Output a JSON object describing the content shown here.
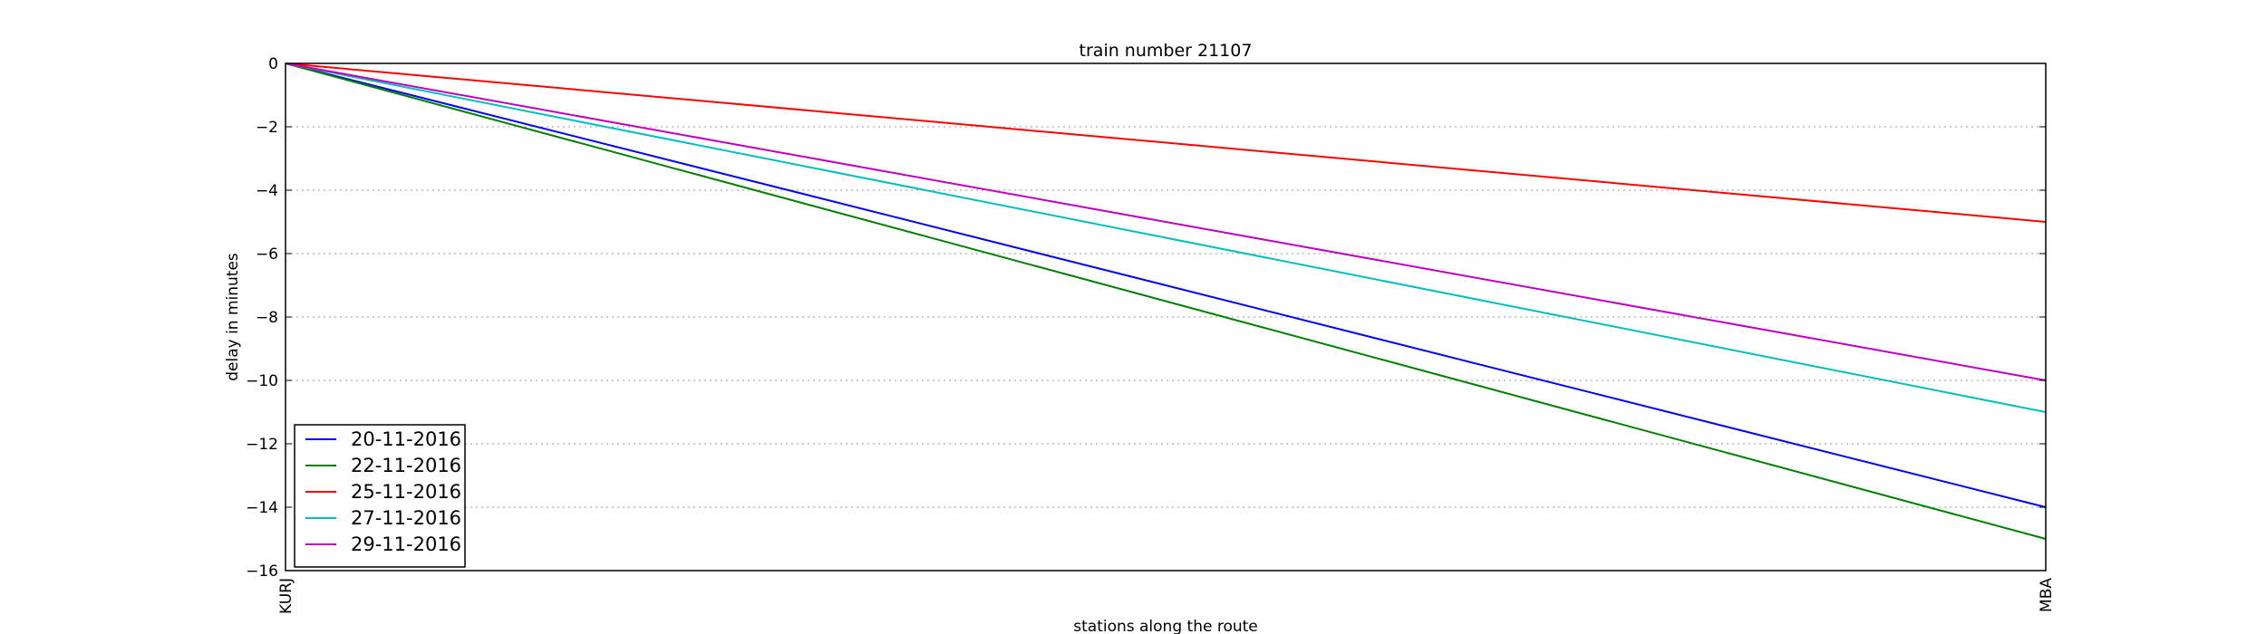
{
  "chart_data": {
    "type": "line",
    "title": "train number 21107",
    "xlabel": "stations along the route",
    "ylabel": "delay in minutes",
    "categories": [
      "KURJ",
      "MBA"
    ],
    "ylim": [
      -16,
      0
    ],
    "yticks": [
      0,
      -2,
      -4,
      -6,
      -8,
      -10,
      -12,
      -14,
      -16
    ],
    "grid": "horizontal dotted",
    "legend_position": "lower-left",
    "series": [
      {
        "name": "20-11-2016",
        "color": "#0000ff",
        "values": [
          0,
          -14
        ]
      },
      {
        "name": "22-11-2016",
        "color": "#008000",
        "values": [
          0,
          -15
        ]
      },
      {
        "name": "25-11-2016",
        "color": "#ff0000",
        "values": [
          0,
          -5
        ]
      },
      {
        "name": "27-11-2016",
        "color": "#00bfbf",
        "values": [
          0,
          -11
        ]
      },
      {
        "name": "29-11-2016",
        "color": "#bf00bf",
        "values": [
          0,
          -10
        ]
      }
    ]
  }
}
